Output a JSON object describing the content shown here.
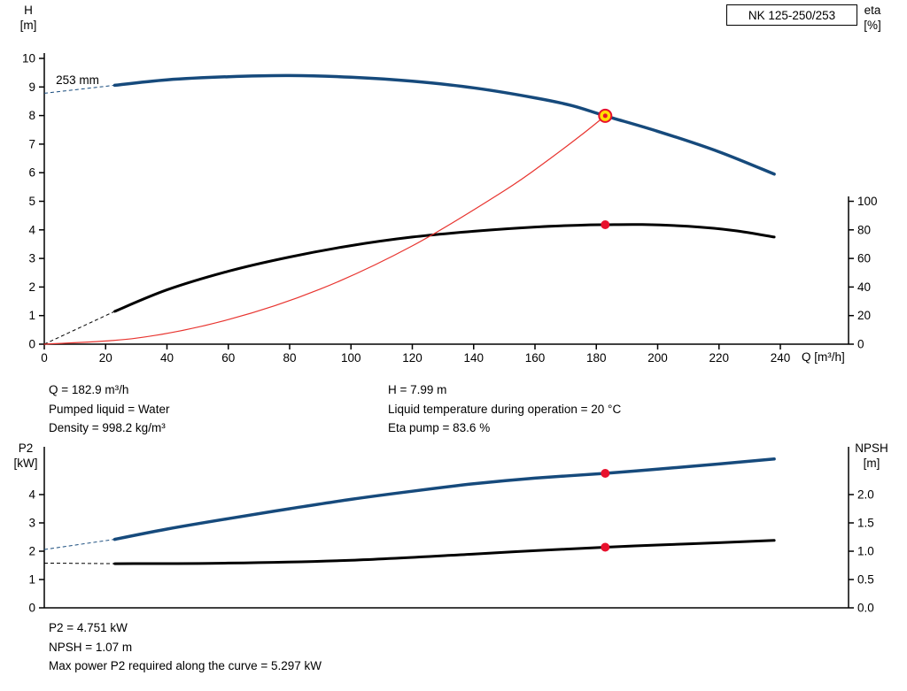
{
  "title_box": {
    "label": "NK 125-250/253"
  },
  "colors": {
    "curve_blue": "#164a7c",
    "curve_black": "#000000",
    "system_red": "#e8342f",
    "marker_red": "#e8112d",
    "marker_yellow": "#ffdd00",
    "axis": "#000000"
  },
  "top_chart_labels": {
    "left_top": "H",
    "left_unit": "[m]",
    "right_top": "eta",
    "right_unit": "[%]",
    "x_axis": "Q [m³/h]",
    "impeller": "253 mm"
  },
  "bottom_chart_labels": {
    "left_top": "P2",
    "left_unit": "[kW]",
    "right_top": "NPSH",
    "right_unit": "[m]"
  },
  "results_top": {
    "col1": [
      "Q = 182.9 m³/h",
      "Pumped liquid = Water",
      "Density = 998.2 kg/m³"
    ],
    "col2": [
      "H = 7.99 m",
      "Liquid temperature during operation = 20 °C",
      "Eta pump = 83.6 %"
    ]
  },
  "results_bottom": [
    "P2 = 4.751 kW",
    "NPSH = 1.07 m",
    "Max power P2 required along the curve = 5.297 kW"
  ],
  "chart_data": [
    {
      "type": "line",
      "title": "NK 125-250/253",
      "xlabel": "Q [m³/h]",
      "ylabel_left": "H [m]",
      "ylabel_right": "eta [%]",
      "xlim": [
        0,
        262
      ],
      "ylim_left": [
        0,
        10.2
      ],
      "ylim_right": [
        0,
        100
      ],
      "axes": {
        "x": {
          "ticks": [
            0,
            20,
            40,
            60,
            80,
            100,
            120,
            140,
            160,
            180,
            200,
            220,
            240
          ],
          "show_labels": true
        },
        "left": {
          "ticks": [
            0,
            1,
            2,
            3,
            4,
            5,
            6,
            7,
            8,
            9,
            10
          ]
        },
        "right": {
          "ticks": [
            {
              "v": 0,
              "label": "0"
            },
            {
              "v": 20,
              "label": "20"
            },
            {
              "v": 40,
              "label": "40"
            },
            {
              "v": 60,
              "label": "60"
            },
            {
              "v": 80,
              "label": "80"
            },
            {
              "v": 100,
              "label": "100"
            }
          ]
        }
      },
      "series": [
        {
          "name": "head-253mm",
          "axis": "left",
          "color": "curve_blue",
          "width": 3.5,
          "dash_lead": [
            [
              0,
              8.78
            ],
            [
              23,
              9.06
            ]
          ],
          "points": [
            [
              23,
              9.06
            ],
            [
              40,
              9.25
            ],
            [
              60,
              9.36
            ],
            [
              80,
              9.4
            ],
            [
              100,
              9.34
            ],
            [
              120,
              9.2
            ],
            [
              140,
              8.97
            ],
            [
              160,
              8.62
            ],
            [
              172,
              8.35
            ],
            [
              182.9,
              7.99
            ],
            [
              200,
              7.45
            ],
            [
              220,
              6.73
            ],
            [
              238,
              5.95
            ]
          ]
        },
        {
          "name": "efficiency",
          "axis": "right",
          "color": "curve_black",
          "width": 3,
          "dash_lead": [
            [
              0,
              0
            ],
            [
              23,
              23
            ]
          ],
          "points": [
            [
              23,
              23
            ],
            [
              40,
              38
            ],
            [
              60,
              51
            ],
            [
              80,
              61
            ],
            [
              100,
              69
            ],
            [
              120,
              75
            ],
            [
              140,
              79
            ],
            [
              160,
              82
            ],
            [
              175,
              83.3
            ],
            [
              182.9,
              83.6
            ],
            [
              195,
              83.7
            ],
            [
              210,
              82.5
            ],
            [
              225,
              79.5
            ],
            [
              238,
              75
            ]
          ]
        },
        {
          "name": "system-curve",
          "axis": "left",
          "color": "system_red",
          "width": 1.2,
          "points": [
            [
              0,
              0
            ],
            [
              30,
              0.21
            ],
            [
              60,
              0.86
            ],
            [
              90,
              1.93
            ],
            [
              120,
              3.44
            ],
            [
              150,
              5.37
            ],
            [
              165,
              6.5
            ],
            [
              175,
              7.31
            ],
            [
              182.9,
              7.99
            ]
          ]
        }
      ],
      "markers": [
        {
          "name": "duty-point-head",
          "q": 182.9,
          "v": 7.99,
          "axis": "left",
          "r": 7,
          "fill": "marker_yellow",
          "stroke": "marker_red"
        },
        {
          "name": "duty-point-head-core",
          "q": 182.9,
          "v": 7.99,
          "axis": "left",
          "r": 2.5,
          "fill": "marker_red"
        },
        {
          "name": "duty-point-eta",
          "q": 182.9,
          "v": 83.6,
          "axis": "right",
          "r": 5,
          "fill": "marker_red"
        }
      ],
      "annotation": {
        "text": "253 mm",
        "q": 3.8,
        "v": 9.1
      }
    },
    {
      "type": "line",
      "title": "",
      "xlabel": "",
      "ylabel_left": "P2 [kW]",
      "ylabel_right": "NPSH [m]",
      "xlim": [
        0,
        262
      ],
      "ylim_left": [
        0,
        5.7
      ],
      "ylim_right": [
        0,
        2.85
      ],
      "axes": {
        "x": {
          "ticks": [],
          "show_labels": false
        },
        "left": {
          "ticks": [
            0,
            1,
            2,
            3,
            4
          ]
        },
        "right": {
          "ticks": [
            {
              "v": 0,
              "label": "0.0"
            },
            {
              "v": 0.5,
              "label": "0.5"
            },
            {
              "v": 1,
              "label": "1.0"
            },
            {
              "v": 1.5,
              "label": "1.5"
            },
            {
              "v": 2,
              "label": "2.0"
            }
          ]
        }
      },
      "series": [
        {
          "name": "p2",
          "axis": "left",
          "color": "curve_blue",
          "width": 3.5,
          "dash_lead": [
            [
              0,
              2.06
            ],
            [
              23,
              2.42
            ]
          ],
          "points": [
            [
              23,
              2.42
            ],
            [
              40,
              2.78
            ],
            [
              60,
              3.15
            ],
            [
              80,
              3.5
            ],
            [
              100,
              3.83
            ],
            [
              120,
              4.12
            ],
            [
              140,
              4.38
            ],
            [
              160,
              4.58
            ],
            [
              182.9,
              4.751
            ],
            [
              200,
              4.9
            ],
            [
              220,
              5.08
            ],
            [
              238,
              5.26
            ]
          ]
        },
        {
          "name": "npsh",
          "axis": "right",
          "color": "curve_black",
          "width": 3,
          "dash_lead": [
            [
              0,
              0.79
            ],
            [
              23,
              0.78
            ]
          ],
          "points": [
            [
              23,
              0.78
            ],
            [
              60,
              0.79
            ],
            [
              100,
              0.84
            ],
            [
              140,
              0.95
            ],
            [
              160,
              1.01
            ],
            [
              182.9,
              1.07
            ],
            [
              200,
              1.11
            ],
            [
              220,
              1.15
            ],
            [
              238,
              1.19
            ]
          ]
        }
      ],
      "markers": [
        {
          "name": "duty-point-p2",
          "q": 182.9,
          "v": 4.751,
          "axis": "left",
          "r": 5,
          "fill": "marker_red"
        },
        {
          "name": "duty-point-npsh",
          "q": 182.9,
          "v": 1.07,
          "axis": "right",
          "r": 5,
          "fill": "marker_red"
        }
      ]
    }
  ]
}
